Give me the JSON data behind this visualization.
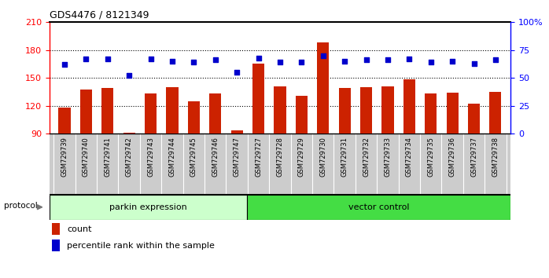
{
  "title": "GDS4476 / 8121349",
  "samples": [
    "GSM729739",
    "GSM729740",
    "GSM729741",
    "GSM729742",
    "GSM729743",
    "GSM729744",
    "GSM729745",
    "GSM729746",
    "GSM729747",
    "GSM729727",
    "GSM729728",
    "GSM729729",
    "GSM729730",
    "GSM729731",
    "GSM729732",
    "GSM729733",
    "GSM729734",
    "GSM729735",
    "GSM729736",
    "GSM729737",
    "GSM729738"
  ],
  "counts": [
    118,
    137,
    139,
    91,
    133,
    140,
    125,
    133,
    93,
    165,
    141,
    131,
    188,
    139,
    140,
    141,
    148,
    133,
    134,
    122,
    135
  ],
  "percentile": [
    62,
    67,
    67,
    52,
    67,
    65,
    64,
    66,
    55,
    68,
    64,
    64,
    70,
    65,
    66,
    66,
    67,
    64,
    65,
    63,
    66
  ],
  "group1_label": "parkin expression",
  "group2_label": "vector control",
  "group1_count": 9,
  "group2_count": 12,
  "bar_color": "#cc2200",
  "dot_color": "#0000cc",
  "group1_bg": "#ccffcc",
  "group2_bg": "#44dd44",
  "ylim_left": [
    90,
    210
  ],
  "ylim_right": [
    0,
    100
  ],
  "yticks_left": [
    90,
    120,
    150,
    180,
    210
  ],
  "yticks_right": [
    0,
    25,
    50,
    75,
    100
  ],
  "ytick_labels_right": [
    "0",
    "25",
    "50",
    "75",
    "100%"
  ],
  "grid_values": [
    120,
    150,
    180
  ],
  "legend_count_label": "count",
  "legend_pct_label": "percentile rank within the sample",
  "xticklabel_bg": "#cccccc",
  "spine_top_color": "#000000"
}
